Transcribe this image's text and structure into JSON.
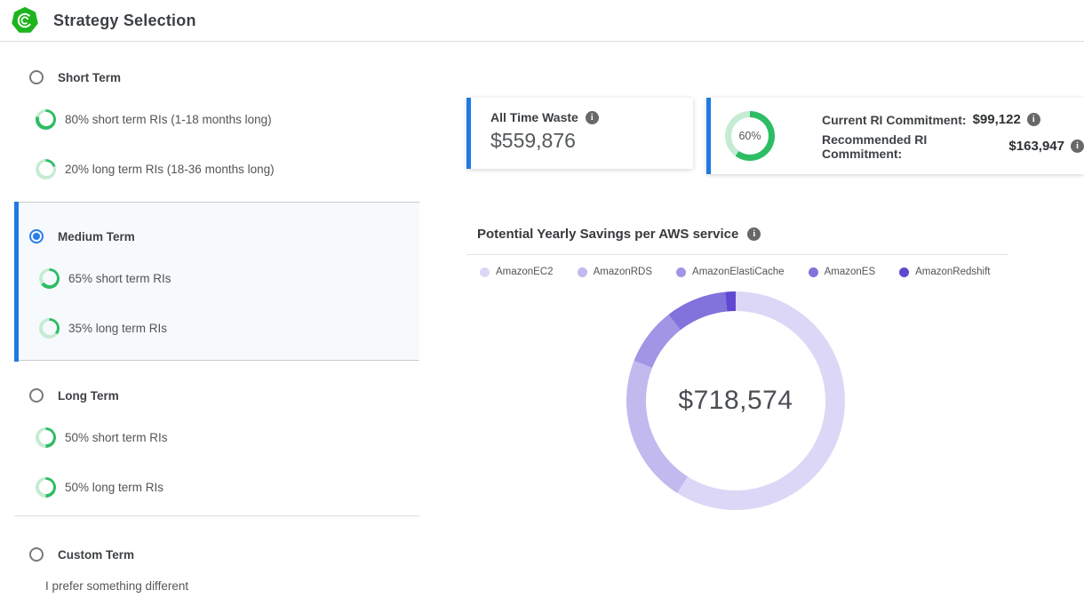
{
  "header": {
    "title": "Strategy Selection",
    "logo_icon": "green-spiral-logo"
  },
  "colors": {
    "accent_blue": "#1e79e6",
    "radio_blue": "#2a7de9",
    "brand_green": "#1eb41e",
    "ring_green": "#2dbd64",
    "ring_track": "#c6ebd3",
    "info_gray": "#66686a",
    "selected_bg": "#f6fafd"
  },
  "strategies": [
    {
      "id": "short-term",
      "label": "Short Term",
      "selected": false,
      "items": [
        {
          "ring_percent": 80,
          "label": "80% short term RIs (1-18 months long)"
        },
        {
          "ring_percent": 20,
          "label": "20% long term RIs (18-36 months long)"
        }
      ]
    },
    {
      "id": "medium-term",
      "label": "Medium Term",
      "selected": true,
      "items": [
        {
          "ring_percent": 65,
          "label": "65% short term RIs"
        },
        {
          "ring_percent": 35,
          "label": "35% long term RIs"
        }
      ]
    },
    {
      "id": "long-term",
      "label": "Long Term",
      "selected": false,
      "items": [
        {
          "ring_percent": 50,
          "label": "50% short term RIs"
        },
        {
          "ring_percent": 50,
          "label": "50% long term RIs"
        }
      ]
    },
    {
      "id": "custom-term",
      "label": "Custom Term",
      "selected": false,
      "description": "I prefer something different",
      "items": []
    }
  ],
  "cards": {
    "all_time_waste": {
      "label": "All Time Waste",
      "value": "$559,876",
      "info_icon": "info-icon"
    },
    "commitment": {
      "gauge_percent": 60,
      "gauge_label": "60%",
      "current_label": "Current RI Commitment:",
      "current_value": "$99,122",
      "recommended_label": "Recommended RI Commitment:",
      "recommended_value": "$163,947"
    }
  },
  "chart_data": {
    "type": "pie",
    "variant": "donut",
    "title": "Potential Yearly Savings per AWS service",
    "center_label": "$718,574",
    "total_usd": 718574,
    "legend_position": "top",
    "segments": [
      {
        "name": "AmazonEC2",
        "color": "#dcd7f6",
        "percent": 59,
        "estimated_value_usd": 423959
      },
      {
        "name": "AmazonRDS",
        "color": "#c2b9ef",
        "percent": 22,
        "estimated_value_usd": 158086
      },
      {
        "name": "AmazonElastiCache",
        "color": "#a295e6",
        "percent": 8.5,
        "estimated_value_usd": 61079
      },
      {
        "name": "AmazonES",
        "color": "#8173db",
        "percent": 9,
        "estimated_value_usd": 64672
      },
      {
        "name": "AmazonRedshift",
        "color": "#6148d1",
        "percent": 1.5,
        "estimated_value_usd": 10778
      }
    ]
  }
}
